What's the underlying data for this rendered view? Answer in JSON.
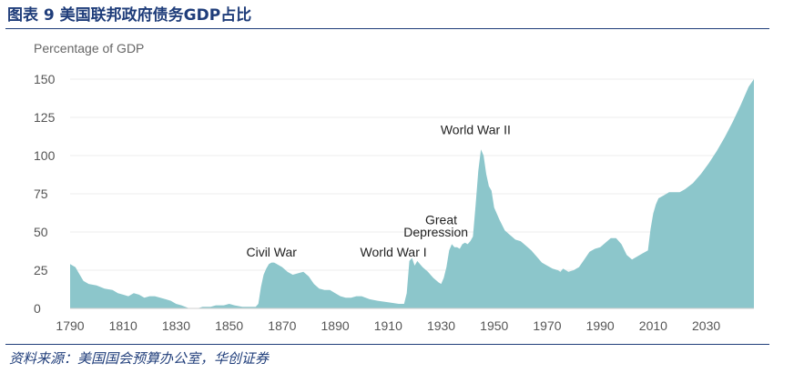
{
  "figure": {
    "title": "图表 9 美国联邦政府债务GDP占比",
    "source": "资料来源：美国国会预算办公室，华创证券"
  },
  "colors": {
    "area": "#8cc6cb",
    "tick_text": "#555555",
    "annotation_text": "#222222",
    "title_text": "#1f3d7a"
  },
  "chart_data": {
    "type": "area",
    "ylabel": "Percentage of GDP",
    "xlabel": "",
    "xlim": [
      1790,
      2048
    ],
    "ylim": [
      0,
      150
    ],
    "x_ticks": [
      "1790",
      "1810",
      "1830",
      "1850",
      "1870",
      "1890",
      "1910",
      "1930",
      "1950",
      "1970",
      "1990",
      "2010",
      "2030"
    ],
    "y_ticks": [
      "150",
      "125",
      "100",
      "75",
      "50",
      "25",
      "0"
    ],
    "grid": "horizontal",
    "series": [
      {
        "x": [
          1790,
          1791,
          1792,
          1793,
          1795,
          1797,
          1800,
          1803,
          1806,
          1808,
          1810,
          1812,
          1814,
          1816,
          1818,
          1820,
          1822,
          1824,
          1826,
          1828,
          1830,
          1832,
          1835,
          1838,
          1840,
          1843,
          1845,
          1848,
          1850,
          1852,
          1855,
          1858,
          1860,
          1861,
          1862,
          1863,
          1864,
          1865,
          1866,
          1867,
          1868,
          1870,
          1872,
          1874,
          1876,
          1878,
          1880,
          1882,
          1884,
          1886,
          1888,
          1890,
          1892,
          1894,
          1896,
          1898,
          1900,
          1903,
          1906,
          1910,
          1914,
          1916,
          1917,
          1918,
          1919,
          1920,
          1921,
          1922,
          1923,
          1925,
          1927,
          1929,
          1930,
          1931,
          1932,
          1933,
          1934,
          1935,
          1936,
          1937,
          1938,
          1939,
          1940,
          1941,
          1942,
          1943,
          1944,
          1945,
          1946,
          1947,
          1948,
          1949,
          1950,
          1952,
          1954,
          1956,
          1958,
          1960,
          1962,
          1964,
          1966,
          1968,
          1970,
          1972,
          1974,
          1975,
          1976,
          1978,
          1980,
          1981,
          1982,
          1984,
          1986,
          1988,
          1990,
          1992,
          1994,
          1996,
          1998,
          2000,
          2002,
          2004,
          2006,
          2008,
          2009,
          2010,
          2011,
          2012,
          2014,
          2016,
          2018,
          2020,
          2022,
          2025,
          2028,
          2031,
          2034,
          2037,
          2040,
          2043,
          2046,
          2048
        ],
        "y": [
          29,
          28,
          27,
          24,
          18,
          16,
          15,
          13,
          12,
          10,
          9,
          8,
          10,
          9,
          7,
          8,
          8,
          7,
          6,
          5,
          3,
          2,
          0,
          0,
          1,
          1,
          2,
          2,
          3,
          2,
          1,
          1,
          1,
          3,
          14,
          22,
          26,
          29,
          30,
          30,
          29,
          27,
          24,
          22,
          23,
          24,
          21,
          16,
          13,
          12,
          12,
          10,
          8,
          7,
          7,
          8,
          8,
          6,
          5,
          4,
          3,
          3,
          10,
          31,
          33,
          28,
          31,
          29,
          27,
          24,
          20,
          17,
          16,
          20,
          27,
          38,
          42,
          40,
          40,
          39,
          42,
          43,
          42,
          44,
          47,
          68,
          90,
          104,
          100,
          88,
          80,
          77,
          66,
          58,
          51,
          48,
          45,
          44,
          41,
          38,
          34,
          30,
          28,
          26,
          25,
          24,
          26,
          24,
          25,
          26,
          27,
          32,
          37,
          39,
          40,
          43,
          46,
          46,
          42,
          35,
          32,
          34,
          36,
          38,
          52,
          62,
          68,
          72,
          74,
          76,
          76,
          76,
          78,
          82,
          88,
          95,
          103,
          112,
          122,
          133,
          145,
          150
        ]
      }
    ],
    "annotations": [
      {
        "text": "Civil War",
        "x": 1866,
        "y": 34
      },
      {
        "text": "World War I",
        "x": 1912,
        "y": 34
      },
      {
        "text": "Great",
        "x": 1930,
        "y": 55
      },
      {
        "text": "Depression",
        "x": 1928,
        "y": 47
      },
      {
        "text": "World War II",
        "x": 1943,
        "y": 114
      }
    ]
  }
}
